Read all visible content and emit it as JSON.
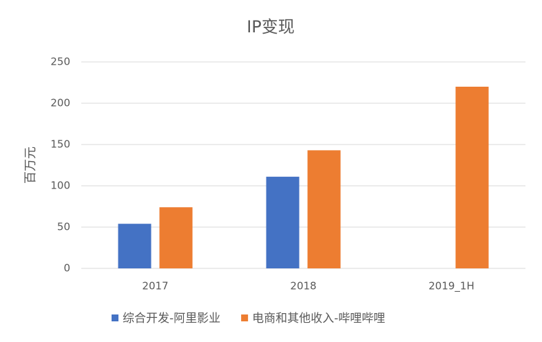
{
  "chart_data": {
    "type": "bar",
    "title": "IP变现",
    "y_label": "百万元",
    "categories": [
      "2017",
      "2018",
      "2019_1H"
    ],
    "series": [
      {
        "name": "综合开发-阿里影业",
        "color": "#4472c4",
        "values": [
          54,
          111,
          null
        ]
      },
      {
        "name": "电商和其他收入-哔哩哔哩",
        "color": "#ed7d31",
        "values": [
          74,
          143,
          220
        ]
      }
    ],
    "ylim": [
      0,
      250
    ],
    "yticks": [
      0,
      50,
      100,
      150,
      200,
      250
    ],
    "grid": true,
    "legend": "bottom"
  }
}
